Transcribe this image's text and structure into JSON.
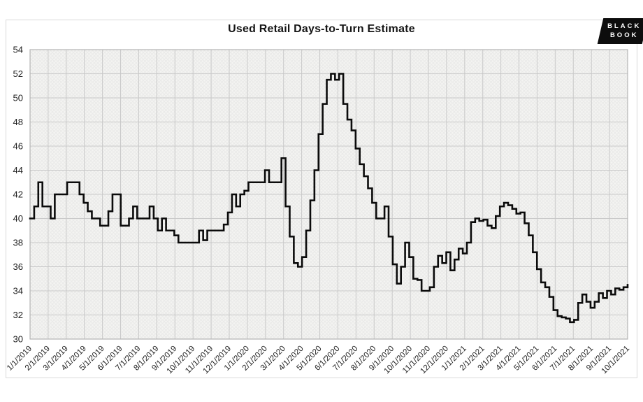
{
  "figure": {
    "title": "Used Retail Days-to-Turn Estimate"
  },
  "logo": {
    "line1": "BLACK",
    "line2": "BOOK",
    "background": "#0d0d0d",
    "text_color": "#ffffff"
  },
  "chart_data": {
    "type": "line",
    "title": "Used Retail Days-to-Turn Estimate",
    "xlabel": "",
    "ylabel": "",
    "ylim": [
      30,
      54
    ],
    "y_ticks": [
      30,
      32,
      34,
      36,
      38,
      40,
      42,
      44,
      46,
      48,
      50,
      52,
      54
    ],
    "x_tick_labels": [
      "1/1/2019",
      "2/1/2019",
      "3/1/2019",
      "4/1/2019",
      "5/1/2019",
      "6/1/2019",
      "7/1/2019",
      "8/1/2019",
      "9/1/2019",
      "10/1/2019",
      "11/1/2019",
      "12/1/2019",
      "1/1/2020",
      "2/1/2020",
      "3/1/2020",
      "4/1/2020",
      "5/1/2020",
      "6/1/2020",
      "7/1/2020",
      "8/1/2020",
      "9/1/2020",
      "10/1/2020",
      "11/1/2020",
      "12/1/2020",
      "1/1/2021",
      "2/1/2021",
      "3/1/2021",
      "4/1/2021",
      "5/1/2021",
      "6/1/2021",
      "7/1/2021",
      "8/1/2021",
      "9/1/2021",
      "10/1/2021"
    ],
    "grid": "both",
    "legend": "none",
    "interpolation": "step-after",
    "line_color": "#0b0b0b",
    "plot_background": "#f4f4f2",
    "grid_color": "#c9c9c9",
    "border_color": "#b3b3b3",
    "series": [
      {
        "name": "Used Retail Days-to-Turn Estimate",
        "values": [
          40,
          41,
          43,
          41,
          41,
          40,
          42,
          42,
          42,
          43,
          43,
          43,
          42,
          41.3,
          40.6,
          40,
          40,
          39.4,
          39.4,
          40.6,
          42,
          42,
          39.4,
          39.4,
          40,
          41,
          40,
          40,
          40,
          41,
          40,
          39,
          40,
          39,
          39,
          38.6,
          38,
          38,
          38,
          38,
          38,
          39,
          38.2,
          39,
          39,
          39,
          39,
          39.5,
          40.5,
          42,
          41,
          42,
          42.3,
          43,
          43,
          43,
          43,
          44,
          43,
          43,
          43,
          45,
          41,
          38.5,
          36.3,
          36,
          36.8,
          39,
          41.5,
          44,
          47,
          49.5,
          51.5,
          52,
          51.5,
          52,
          49.5,
          48.2,
          47.3,
          45.8,
          44.5,
          43.5,
          42.5,
          41.3,
          40,
          40,
          41,
          38.5,
          36.2,
          34.6,
          36,
          38,
          36.8,
          35,
          34.9,
          34,
          34,
          34.3,
          36,
          36.9,
          36.3,
          37.2,
          35.7,
          36.6,
          37.5,
          37.1,
          38,
          39.7,
          40,
          39.8,
          39.9,
          39.4,
          39.2,
          40.2,
          41,
          41.3,
          41.1,
          40.8,
          40.4,
          40.5,
          39.6,
          38.6,
          37.2,
          35.8,
          34.7,
          34.3,
          33.5,
          32.4,
          31.9,
          31.8,
          31.7,
          31.4,
          31.6,
          33,
          33.7,
          33.1,
          32.6,
          33.1,
          33.8,
          33.4,
          34,
          33.7,
          34.2,
          34.1,
          34.3,
          34.5
        ]
      }
    ]
  }
}
